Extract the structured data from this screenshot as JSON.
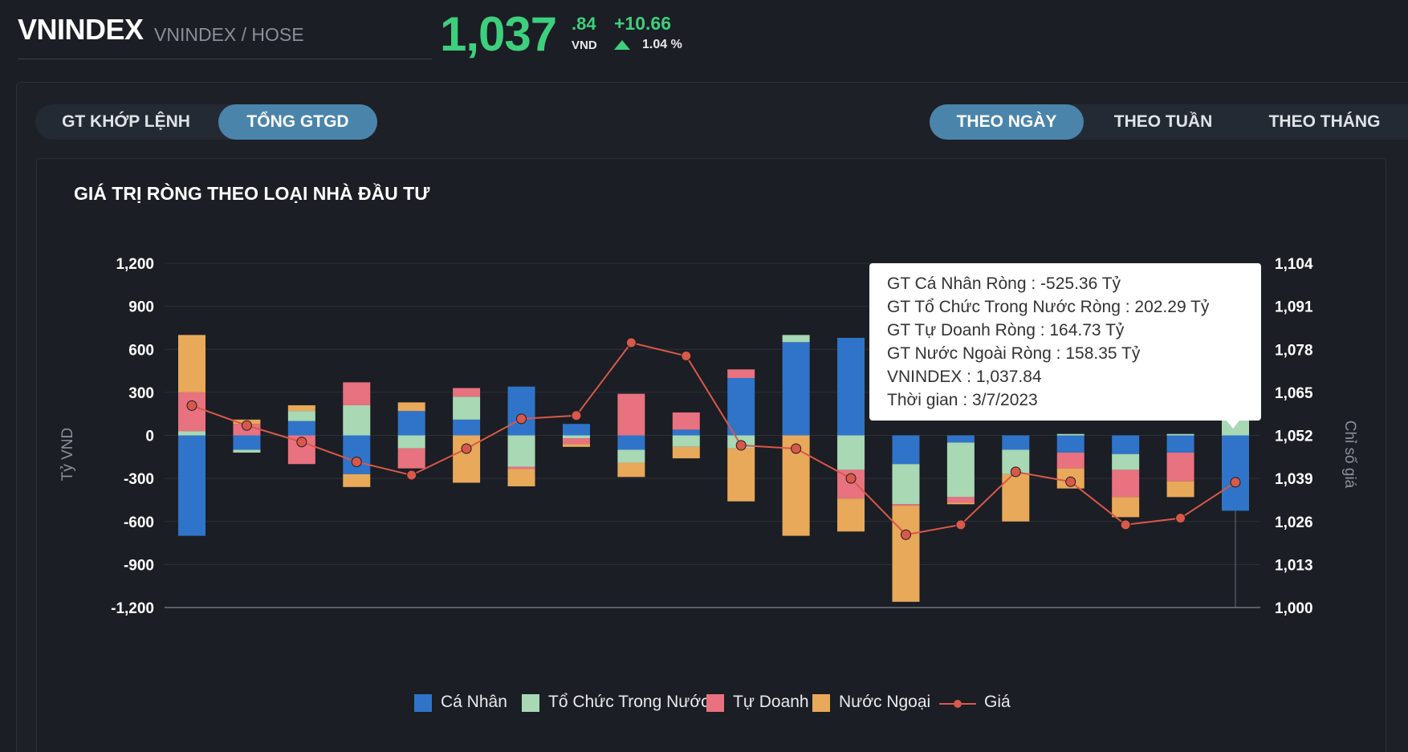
{
  "header": {
    "symbol": "VNINDEX",
    "symbol_sub": "VNINDEX / HOSE",
    "price_int": "1,037",
    "price_dec": ".84",
    "price_unit": "VND",
    "change": "+10.66",
    "change_pct": "1.04 %",
    "up_color": "#3ecf7d"
  },
  "value_tabs": [
    {
      "label": "GT KHỚP LỆNH",
      "active": false
    },
    {
      "label": "TỔNG GTGD",
      "active": true
    }
  ],
  "period_tabs": [
    {
      "label": "THEO NGÀY",
      "active": true
    },
    {
      "label": "THEO TUẦN",
      "active": false
    },
    {
      "label": "THEO THÁNG",
      "active": false
    }
  ],
  "chart_data": {
    "type": "bar",
    "stacked": true,
    "title": "GIÁ TRỊ RÒNG THEO LOẠI NHÀ ĐẦU TƯ",
    "ylabel": "Tỷ VND",
    "y2label": "Chỉ số giá",
    "ylim": [
      -1200,
      1200
    ],
    "y_ticks": [
      "1,200",
      "900",
      "600",
      "300",
      "0",
      "-300",
      "-600",
      "-900",
      "-1,200"
    ],
    "y2lim": [
      1000,
      1104
    ],
    "y2_ticks": [
      "1,104",
      "1,091",
      "1,078",
      "1,065",
      "1,052",
      "1,039",
      "1,026",
      "1,013",
      "1,000"
    ],
    "grid": true,
    "legend_position": "bottom",
    "series": [
      {
        "name": "Cá Nhân",
        "color": "#2f74c9",
        "values": [
          -700,
          -100,
          100,
          -270,
          170,
          110,
          340,
          80,
          -100,
          40,
          400,
          650,
          680,
          -200,
          -50,
          -100,
          -120,
          -130,
          -120,
          -525.36
        ]
      },
      {
        "name": "Tổ Chức Trong Nước",
        "color": "#a8d8b4",
        "values": [
          30,
          -20,
          70,
          210,
          -90,
          160,
          -220,
          -20,
          -90,
          -80,
          -90,
          50,
          -240,
          -280,
          -380,
          -170,
          10,
          -110,
          10,
          202.29
        ]
      },
      {
        "name": "Tự Doanh",
        "color": "#e8727f",
        "values": [
          270,
          80,
          -200,
          160,
          -140,
          60,
          -15,
          -40,
          290,
          120,
          60,
          0,
          -200,
          -10,
          -40,
          0,
          -110,
          -190,
          -200,
          164.73
        ]
      },
      {
        "name": "Nước Ngoại",
        "color": "#e8a95a",
        "values": [
          400,
          30,
          40,
          -90,
          60,
          -330,
          -120,
          -20,
          -100,
          -80,
          -370,
          -700,
          -230,
          -670,
          -10,
          -330,
          -140,
          -140,
          -110,
          158.35
        ]
      },
      {
        "name": "Giá",
        "type": "line",
        "axis": "right",
        "color": "#d9584a",
        "values": [
          1061,
          1055,
          1050,
          1044,
          1040,
          1048,
          1057,
          1058,
          1080,
          1076,
          1049,
          1048,
          1039,
          1022,
          1025,
          1041,
          1038,
          1025,
          1027,
          1037.84
        ]
      }
    ]
  },
  "tooltip": {
    "lines": [
      "GT Cá Nhân Ròng  : -525.36 Tỷ",
      "GT Tổ Chức Trong Nước Ròng : 202.29 Tỷ",
      "GT Tự Doanh Ròng : 164.73 Tỷ",
      "GT Nước Ngoài Ròng : 158.35 Tỷ",
      "VNINDEX : 1,037.84",
      "Thời gian : 3/7/2023"
    ]
  }
}
